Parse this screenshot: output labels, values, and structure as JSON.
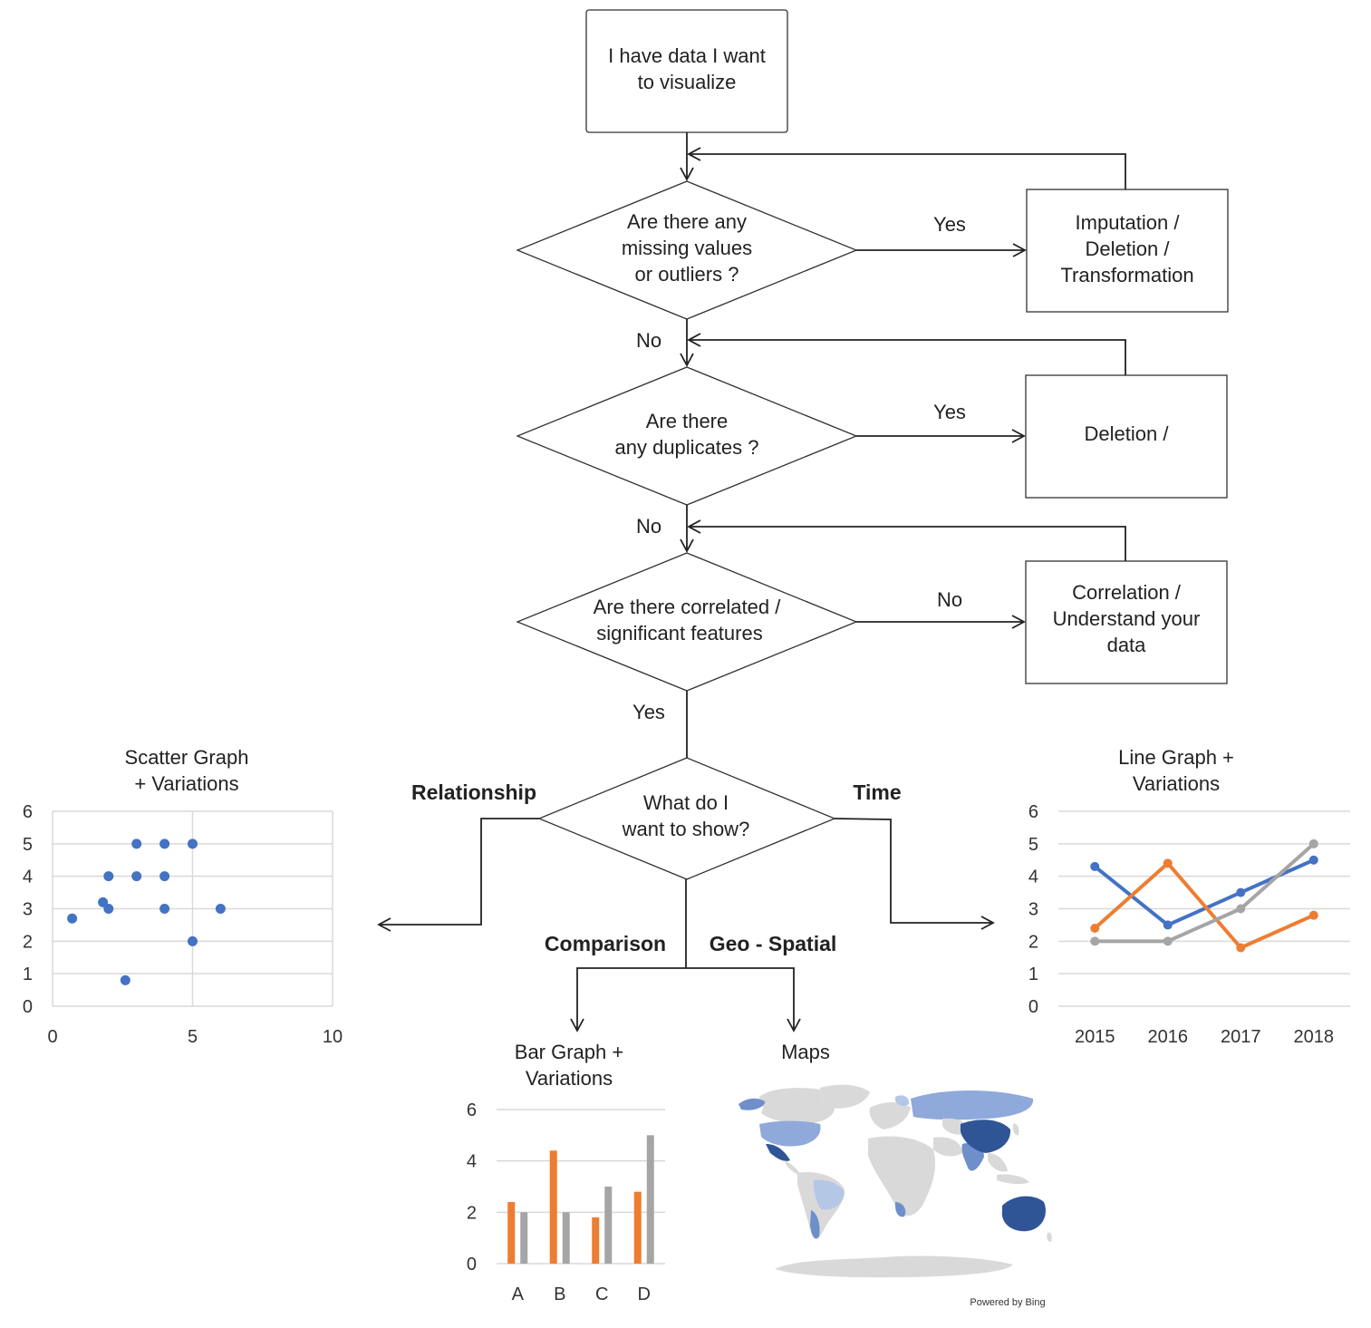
{
  "nodes": {
    "start": "I have data I want to visualize",
    "q_missing": [
      "Are there any",
      "missing values",
      "or outliers ?"
    ],
    "a_imputation": [
      "Imputation /",
      "Deletion /",
      "Transformation"
    ],
    "q_duplicates": [
      "Are there",
      "any duplicates ?"
    ],
    "a_deletion": "Deletion /",
    "q_correlated": [
      "Are there correlated /",
      "significant features"
    ],
    "a_correlation": [
      "Correlation /",
      "Understand your",
      "data"
    ],
    "q_show": [
      "What do I",
      "want to show?"
    ]
  },
  "edges": {
    "yes1": "Yes",
    "no1": "No",
    "yes2": "Yes",
    "no2": "No",
    "no3": "No",
    "yes3": "Yes",
    "relationship": "Relationship",
    "time": "Time",
    "comparison": "Comparison",
    "geo": "Geo - Spatial"
  },
  "charts_titles": {
    "scatter": [
      "Scatter Graph",
      "+ Variations"
    ],
    "line": [
      "Line Graph +",
      "Variations"
    ],
    "bar": [
      "Bar Graph +",
      "Variations"
    ],
    "maps": "Maps",
    "maps_credit": "Powered by Bing"
  },
  "colors": {
    "blue": "#4472C4",
    "orange": "#ED7D31",
    "gray": "#A5A5A5",
    "map_dark": "#2F5597",
    "map_mid": "#6F8FCB",
    "map_light": "#B4C7E7",
    "map_base": "#D9D9D9"
  },
  "chart_data": [
    {
      "type": "scatter",
      "title": "Scatter Graph + Variations",
      "xlim": [
        0,
        10
      ],
      "ylim": [
        0,
        6
      ],
      "xticks": [
        0,
        5,
        10
      ],
      "yticks": [
        0,
        1,
        2,
        3,
        4,
        5,
        6
      ],
      "grid": true,
      "points": [
        {
          "x": 0.7,
          "y": 2.7
        },
        {
          "x": 1.8,
          "y": 3.2
        },
        {
          "x": 2,
          "y": 3
        },
        {
          "x": 2,
          "y": 4
        },
        {
          "x": 3,
          "y": 4
        },
        {
          "x": 3,
          "y": 5
        },
        {
          "x": 4,
          "y": 5
        },
        {
          "x": 4,
          "y": 4
        },
        {
          "x": 4,
          "y": 3
        },
        {
          "x": 5,
          "y": 5
        },
        {
          "x": 5,
          "y": 2
        },
        {
          "x": 6,
          "y": 3
        },
        {
          "x": 2.6,
          "y": 0.8
        }
      ]
    },
    {
      "type": "line",
      "title": "Line Graph + Variations",
      "categories": [
        "2015",
        "2016",
        "2017",
        "2018"
      ],
      "ylim": [
        0,
        6
      ],
      "yticks": [
        0,
        1,
        2,
        3,
        4,
        5,
        6
      ],
      "grid": true,
      "series": [
        {
          "color": "#4472C4",
          "values": [
            4.3,
            2.5,
            3.5,
            4.5
          ]
        },
        {
          "color": "#ED7D31",
          "values": [
            2.4,
            4.4,
            1.8,
            2.8
          ]
        },
        {
          "color": "#A5A5A5",
          "values": [
            2.0,
            2.0,
            3.0,
            5.0
          ]
        }
      ]
    },
    {
      "type": "bar",
      "title": "Bar Graph + Variations",
      "categories": [
        "A",
        "B",
        "C",
        "D"
      ],
      "ylim": [
        0,
        6
      ],
      "yticks": [
        0,
        2,
        4,
        6
      ],
      "grid": true,
      "series": [
        {
          "color": "#ED7D31",
          "values": [
            2.4,
            4.4,
            1.8,
            2.8
          ]
        },
        {
          "color": "#A5A5A5",
          "values": [
            2.0,
            2.0,
            3.0,
            5.0
          ]
        }
      ]
    }
  ]
}
